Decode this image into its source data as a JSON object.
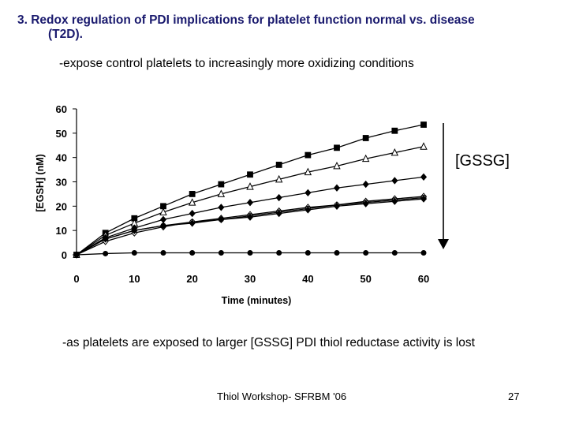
{
  "slide": {
    "title_line1": "3. Redox regulation of PDI implications for platelet function normal vs. disease",
    "title_line2": "(T2D).",
    "subtitle": "-expose control platelets to increasingly more oxidizing conditions",
    "bottom_note": "-as platelets are exposed to larger  [GSSG] PDI thiol reductase activity is lost",
    "footer": "Thiol Workshop- SFRBM '06",
    "page_number": "27",
    "bracket_label": "[GSSG]"
  },
  "chart_data": {
    "type": "line",
    "xlabel": "Time (minutes)",
    "ylabel": "[EGSH] (nM)",
    "xlim": [
      0,
      60
    ],
    "ylim": [
      0,
      60
    ],
    "x_ticks": [
      0,
      10,
      20,
      30,
      40,
      50,
      60
    ],
    "y_ticks": [
      0,
      10,
      20,
      30,
      40,
      50,
      60
    ],
    "x": [
      0,
      5,
      10,
      15,
      20,
      25,
      30,
      35,
      40,
      45,
      50,
      55,
      60
    ],
    "series": [
      {
        "marker": "square-filled",
        "values": [
          0,
          9,
          15,
          20,
          25,
          29,
          33,
          37,
          41,
          44,
          48,
          51,
          53.5
        ]
      },
      {
        "marker": "triangle-open",
        "values": [
          0,
          8,
          13,
          17.5,
          21.5,
          25,
          28,
          31,
          34,
          36.5,
          39.5,
          42,
          44.5
        ]
      },
      {
        "marker": "diamond-filled",
        "values": [
          0,
          7,
          11,
          14.5,
          17,
          19.5,
          21.5,
          23.5,
          25.5,
          27.5,
          29,
          30.5,
          32
        ]
      },
      {
        "marker": "diamond-open",
        "values": [
          0,
          5.5,
          9,
          11.5,
          13.5,
          15,
          16.5,
          18,
          19.5,
          20.5,
          22,
          23,
          24
        ]
      },
      {
        "marker": "circle-open",
        "values": [
          0,
          6.5,
          10,
          12,
          13.5,
          14.5,
          16,
          17.5,
          19,
          20.5,
          21.5,
          22.5,
          23.5
        ]
      },
      {
        "marker": "diamond-filled",
        "values": [
          0,
          6.5,
          10,
          12,
          13,
          14.5,
          15.5,
          17,
          18.5,
          20,
          21,
          22,
          23
        ]
      },
      {
        "marker": "circle-filled",
        "values": [
          0,
          0.5,
          0.8,
          0.8,
          0.8,
          0.8,
          0.8,
          0.8,
          0.8,
          0.8,
          0.8,
          0.8,
          0.8
        ]
      }
    ],
    "grid": false,
    "legend": "none",
    "annotation": "arrow pointing down, labelled [GSSG]"
  }
}
